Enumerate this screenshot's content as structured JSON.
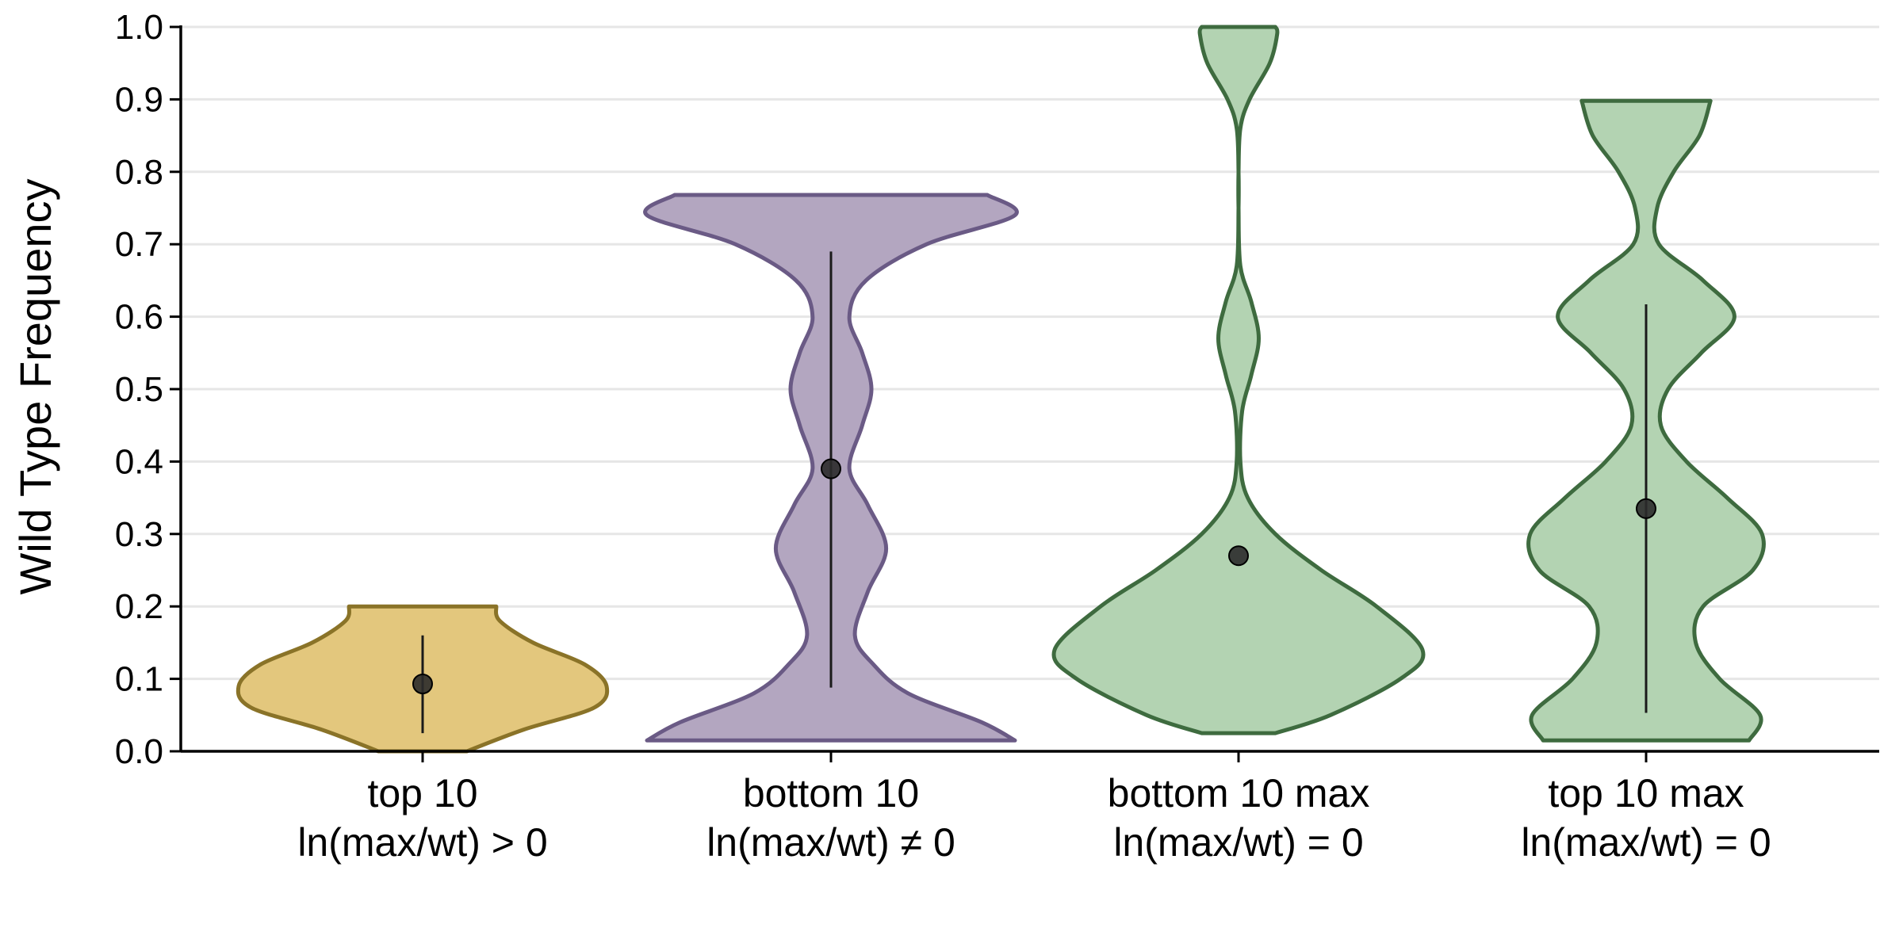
{
  "chart_data": {
    "type": "violin",
    "title": "",
    "ylabel": "Wild Type Frequency",
    "xlabel": "",
    "ylim": [
      0,
      1
    ],
    "yticks": [
      0.0,
      0.1,
      0.2,
      0.3,
      0.4,
      0.5,
      0.6,
      0.7,
      0.8,
      0.9,
      1.0
    ],
    "ytick_labels": [
      "0.0",
      "0.1",
      "0.2",
      "0.3",
      "0.4",
      "0.5",
      "0.6",
      "0.7",
      "0.8",
      "0.9",
      "1.0"
    ],
    "grid": "horizontal",
    "categories": [
      {
        "line1": "top 10",
        "line2": "ln(max/wt) > 0"
      },
      {
        "line1": "bottom 10",
        "line2": "ln(max/wt) ≠ 0"
      },
      {
        "line1": "bottom 10 max",
        "line2": "ln(max/wt) = 0"
      },
      {
        "line1": "top 10 max",
        "line2": "ln(max/wt) = 0"
      }
    ],
    "series": [
      {
        "fill": "#e3c77d",
        "stroke": "#8a7328",
        "mean": 0.093,
        "whisker": [
          0.025,
          0.16
        ],
        "density": [
          [
            0.0,
            0.24
          ],
          [
            0.03,
            0.55
          ],
          [
            0.06,
            0.93
          ],
          [
            0.09,
            1.0
          ],
          [
            0.12,
            0.88
          ],
          [
            0.15,
            0.6
          ],
          [
            0.18,
            0.42
          ],
          [
            0.2,
            0.4
          ]
        ]
      },
      {
        "fill": "#b3a6c0",
        "stroke": "#6a5a85",
        "mean": 0.39,
        "whisker": [
          0.088,
          0.69
        ],
        "density": [
          [
            0.015,
            1.0
          ],
          [
            0.04,
            0.82
          ],
          [
            0.08,
            0.42
          ],
          [
            0.12,
            0.23
          ],
          [
            0.16,
            0.13
          ],
          [
            0.22,
            0.2
          ],
          [
            0.28,
            0.3
          ],
          [
            0.34,
            0.2
          ],
          [
            0.39,
            0.1
          ],
          [
            0.45,
            0.17
          ],
          [
            0.5,
            0.22
          ],
          [
            0.55,
            0.17
          ],
          [
            0.6,
            0.1
          ],
          [
            0.65,
            0.19
          ],
          [
            0.7,
            0.52
          ],
          [
            0.74,
            1.0
          ],
          [
            0.768,
            0.85
          ]
        ]
      },
      {
        "fill": "#b3d3b2",
        "stroke": "#3e6b3f",
        "mean": 0.27,
        "whisker": null,
        "density": [
          [
            0.025,
            0.2
          ],
          [
            0.05,
            0.5
          ],
          [
            0.1,
            0.88
          ],
          [
            0.14,
            1.0
          ],
          [
            0.2,
            0.75
          ],
          [
            0.25,
            0.45
          ],
          [
            0.3,
            0.2
          ],
          [
            0.35,
            0.05
          ],
          [
            0.4,
            0.01
          ],
          [
            0.47,
            0.02
          ],
          [
            0.52,
            0.07
          ],
          [
            0.57,
            0.11
          ],
          [
            0.62,
            0.07
          ],
          [
            0.67,
            0.01
          ],
          [
            0.75,
            0.0
          ],
          [
            0.8,
            0.0
          ],
          [
            0.86,
            0.01
          ],
          [
            0.9,
            0.06
          ],
          [
            0.95,
            0.17
          ],
          [
            0.99,
            0.21
          ],
          [
            1.0,
            0.2
          ]
        ]
      },
      {
        "fill": "#b3d3b2",
        "stroke": "#3e6b3f",
        "mean": 0.335,
        "whisker": [
          0.053,
          0.617
        ],
        "density": [
          [
            0.015,
            0.56
          ],
          [
            0.05,
            0.62
          ],
          [
            0.1,
            0.4
          ],
          [
            0.15,
            0.27
          ],
          [
            0.2,
            0.31
          ],
          [
            0.25,
            0.58
          ],
          [
            0.3,
            0.63
          ],
          [
            0.35,
            0.44
          ],
          [
            0.4,
            0.22
          ],
          [
            0.45,
            0.08
          ],
          [
            0.5,
            0.12
          ],
          [
            0.55,
            0.3
          ],
          [
            0.6,
            0.48
          ],
          [
            0.65,
            0.31
          ],
          [
            0.7,
            0.07
          ],
          [
            0.75,
            0.06
          ],
          [
            0.8,
            0.15
          ],
          [
            0.85,
            0.29
          ],
          [
            0.898,
            0.35
          ]
        ]
      }
    ]
  }
}
